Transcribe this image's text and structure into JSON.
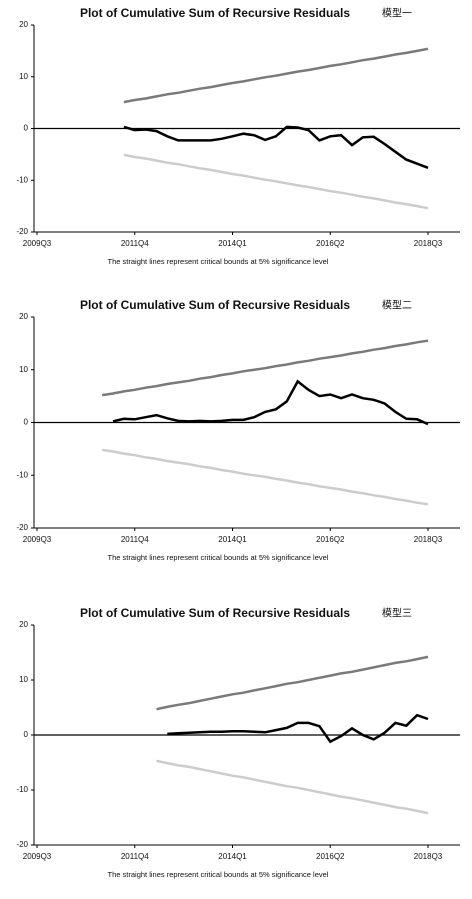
{
  "chart_data": [
    {
      "type": "line",
      "title": "Plot of Cumulative Sum of Recursive Residuals",
      "annotation": "模型一",
      "note": "The straight lines represent critical bounds at 5% significance level",
      "categories": [
        "2009Q3",
        null,
        null,
        null,
        null,
        null,
        null,
        null,
        null,
        "2011Q4",
        null,
        null,
        null,
        null,
        null,
        null,
        null,
        null,
        "2014Q1",
        null,
        null,
        null,
        null,
        null,
        null,
        null,
        null,
        "2016Q2",
        null,
        null,
        null,
        null,
        null,
        null,
        null,
        null,
        "2018Q3"
      ],
      "ylim": [
        -20,
        20
      ],
      "yticks": [
        -20,
        -10,
        0,
        10,
        20
      ],
      "series": [
        {
          "color": "#000000",
          "values": [
            null,
            null,
            null,
            null,
            null,
            null,
            null,
            null,
            0.3,
            -0.3,
            -0.2,
            -0.5,
            -1.5,
            -2.3,
            -2.3,
            -2.3,
            -2.3,
            -2.0,
            -1.5,
            -1.0,
            -1.3,
            -2.2,
            -1.5,
            0.3,
            0.2,
            -0.3,
            -2.3,
            -1.5,
            -1.3,
            -3.2,
            -1.7,
            -1.6,
            -3.0,
            -4.5,
            -6.0,
            -6.8,
            -7.6
          ]
        },
        {
          "color": "#7a7a7a",
          "values": [
            null,
            null,
            null,
            null,
            null,
            null,
            null,
            null,
            5.1,
            5.5,
            5.8,
            6.2,
            6.6,
            6.9,
            7.3,
            7.7,
            8.0,
            8.4,
            8.8,
            9.1,
            9.5,
            9.9,
            10.2,
            10.6,
            11.0,
            11.3,
            11.7,
            12.1,
            12.4,
            12.8,
            13.2,
            13.5,
            13.9,
            14.3,
            14.6,
            15.0,
            15.4
          ]
        },
        {
          "color": "#cccccc",
          "values": [
            null,
            null,
            null,
            null,
            null,
            null,
            null,
            null,
            -5.1,
            -5.5,
            -5.8,
            -6.2,
            -6.6,
            -6.9,
            -7.3,
            -7.7,
            -8.0,
            -8.4,
            -8.8,
            -9.1,
            -9.5,
            -9.9,
            -10.2,
            -10.6,
            -11.0,
            -11.3,
            -11.7,
            -12.1,
            -12.4,
            -12.8,
            -13.2,
            -13.5,
            -13.9,
            -14.3,
            -14.6,
            -15.0,
            -15.4
          ]
        }
      ]
    },
    {
      "type": "line",
      "title": "Plot of Cumulative Sum of Recursive Residuals",
      "annotation": "模型二",
      "note": "The straight lines represent critical bounds at 5% significance level",
      "categories": [
        "2009Q3",
        null,
        null,
        null,
        null,
        null,
        null,
        null,
        null,
        "2011Q4",
        null,
        null,
        null,
        null,
        null,
        null,
        null,
        null,
        "2014Q1",
        null,
        null,
        null,
        null,
        null,
        null,
        null,
        null,
        "2016Q2",
        null,
        null,
        null,
        null,
        null,
        null,
        null,
        null,
        "2018Q3"
      ],
      "ylim": [
        -20,
        20
      ],
      "yticks": [
        -20,
        -10,
        0,
        10,
        20
      ],
      "series": [
        {
          "color": "#000000",
          "values": [
            null,
            null,
            null,
            null,
            null,
            null,
            null,
            0.2,
            0.7,
            0.6,
            1.0,
            1.4,
            0.8,
            0.3,
            0.2,
            0.3,
            0.2,
            0.3,
            0.5,
            0.5,
            1.0,
            2.0,
            2.5,
            4.0,
            7.8,
            6.2,
            5.0,
            5.3,
            4.6,
            5.3,
            4.6,
            4.3,
            3.6,
            2.0,
            0.7,
            0.6,
            -0.3
          ]
        },
        {
          "color": "#7a7a7a",
          "values": [
            null,
            null,
            null,
            null,
            null,
            null,
            5.2,
            5.5,
            5.9,
            6.2,
            6.6,
            6.9,
            7.3,
            7.6,
            7.9,
            8.3,
            8.6,
            9.0,
            9.3,
            9.7,
            10.0,
            10.3,
            10.7,
            11.0,
            11.4,
            11.7,
            12.1,
            12.4,
            12.7,
            13.1,
            13.4,
            13.8,
            14.1,
            14.5,
            14.8,
            15.2,
            15.5
          ]
        },
        {
          "color": "#cccccc",
          "values": [
            null,
            null,
            null,
            null,
            null,
            null,
            -5.2,
            -5.5,
            -5.9,
            -6.2,
            -6.6,
            -6.9,
            -7.3,
            -7.6,
            -7.9,
            -8.3,
            -8.6,
            -9.0,
            -9.3,
            -9.7,
            -10.0,
            -10.3,
            -10.7,
            -11.0,
            -11.4,
            -11.7,
            -12.1,
            -12.4,
            -12.7,
            -13.1,
            -13.4,
            -13.8,
            -14.1,
            -14.5,
            -14.8,
            -15.2,
            -15.5
          ]
        }
      ]
    },
    {
      "type": "line",
      "title": "Plot of Cumulative Sum of Recursive Residuals",
      "annotation": "模型三",
      "note": "The straight lines represent critical bounds at 5% significance level",
      "categories": [
        "2009Q3",
        null,
        null,
        null,
        null,
        null,
        null,
        null,
        null,
        "2011Q4",
        null,
        null,
        null,
        null,
        null,
        null,
        null,
        null,
        "2014Q1",
        null,
        null,
        null,
        null,
        null,
        null,
        null,
        null,
        "2016Q2",
        null,
        null,
        null,
        null,
        null,
        null,
        null,
        null,
        "2018Q3"
      ],
      "ylim": [
        -20,
        20
      ],
      "yticks": [
        -20,
        -10,
        0,
        10,
        20
      ],
      "series": [
        {
          "color": "#000000",
          "values": [
            null,
            null,
            null,
            null,
            null,
            null,
            null,
            null,
            null,
            null,
            null,
            null,
            0.2,
            0.3,
            0.4,
            0.5,
            0.6,
            0.6,
            0.7,
            0.7,
            0.6,
            0.5,
            0.9,
            1.3,
            2.2,
            2.2,
            1.6,
            -1.2,
            -0.2,
            1.2,
            0.0,
            -0.8,
            0.4,
            2.2,
            1.7,
            3.6,
            2.9
          ]
        },
        {
          "color": "#7a7a7a",
          "values": [
            null,
            null,
            null,
            null,
            null,
            null,
            null,
            null,
            null,
            null,
            null,
            4.7,
            5.1,
            5.5,
            5.8,
            6.2,
            6.6,
            7.0,
            7.4,
            7.7,
            8.1,
            8.5,
            8.9,
            9.3,
            9.6,
            10.0,
            10.4,
            10.8,
            11.2,
            11.5,
            11.9,
            12.3,
            12.7,
            13.1,
            13.4,
            13.8,
            14.2
          ]
        },
        {
          "color": "#cccccc",
          "values": [
            null,
            null,
            null,
            null,
            null,
            null,
            null,
            null,
            null,
            null,
            null,
            -4.7,
            -5.1,
            -5.5,
            -5.8,
            -6.2,
            -6.6,
            -7.0,
            -7.4,
            -7.7,
            -8.1,
            -8.5,
            -8.9,
            -9.3,
            -9.6,
            -10.0,
            -10.4,
            -10.8,
            -11.2,
            -11.5,
            -11.9,
            -12.3,
            -12.7,
            -13.1,
            -13.4,
            -13.8,
            -14.2
          ]
        }
      ]
    }
  ]
}
